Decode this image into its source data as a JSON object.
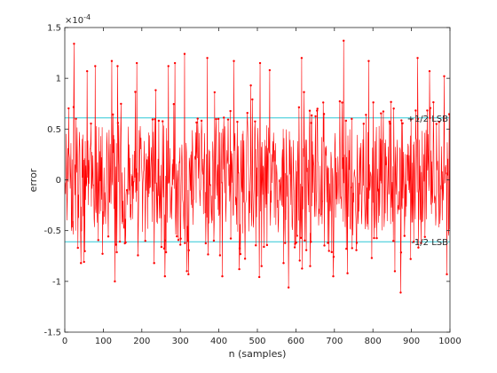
{
  "chart_data": {
    "type": "line",
    "xlabel": "n (samples)",
    "ylabel": "error",
    "exponent_label": "×10",
    "exponent_power": "-4",
    "scale": 0.0001,
    "xlim": [
      0,
      1000
    ],
    "ylim": [
      -1.5,
      1.5
    ],
    "x_ticks": [
      0,
      100,
      200,
      300,
      400,
      500,
      600,
      700,
      800,
      900,
      1000
    ],
    "x_tick_labels": [
      "0",
      "100",
      "200",
      "300",
      "400",
      "500",
      "600",
      "700",
      "800",
      "900",
      "1000"
    ],
    "y_ticks": [
      -1.5,
      -1,
      -0.5,
      0,
      0.5,
      1,
      1.5
    ],
    "y_tick_labels": [
      "-1.5",
      "-1",
      "-0.5",
      "0",
      "0.5",
      "1",
      "1.5"
    ],
    "grid": false,
    "reference_lines": [
      {
        "label": "+1/2 LSB",
        "y": 0.61,
        "color": "#2ec7d6"
      },
      {
        "label": "-1/2 LSB",
        "y": -0.61,
        "color": "#2ec7d6"
      }
    ],
    "series": [
      {
        "color": "#ff0000",
        "marker": "point",
        "x_start": 1,
        "x_step": 1,
        "count": 1000,
        "description_values": "approx. uniformly distributed quantization error",
        "seed": 17,
        "spread": 0.62,
        "peaks": [
          {
            "x": 24,
            "y": 1.34
          },
          {
            "x": 34,
            "y": -0.67
          },
          {
            "x": 42,
            "y": -0.82
          },
          {
            "x": 58,
            "y": 1.07
          },
          {
            "x": 79,
            "y": 1.12
          },
          {
            "x": 122,
            "y": 1.17
          },
          {
            "x": 130,
            "y": -1.0
          },
          {
            "x": 137,
            "y": 1.12
          },
          {
            "x": 187,
            "y": 1.15
          },
          {
            "x": 232,
            "y": -0.82
          },
          {
            "x": 260,
            "y": -0.95
          },
          {
            "x": 269,
            "y": 1.12
          },
          {
            "x": 286,
            "y": 1.15
          },
          {
            "x": 311,
            "y": 1.24
          },
          {
            "x": 321,
            "y": -0.93
          },
          {
            "x": 370,
            "y": 1.2
          },
          {
            "x": 409,
            "y": -0.95
          },
          {
            "x": 439,
            "y": 1.17
          },
          {
            "x": 453,
            "y": -0.88
          },
          {
            "x": 507,
            "y": 1.15
          },
          {
            "x": 511,
            "y": -0.85
          },
          {
            "x": 532,
            "y": 1.08
          },
          {
            "x": 568,
            "y": -0.82
          },
          {
            "x": 581,
            "y": -1.06
          },
          {
            "x": 615,
            "y": 1.2
          },
          {
            "x": 637,
            "y": -0.85
          },
          {
            "x": 697,
            "y": -0.95
          },
          {
            "x": 724,
            "y": 1.37
          },
          {
            "x": 734,
            "y": -0.92
          },
          {
            "x": 789,
            "y": 1.17
          },
          {
            "x": 797,
            "y": -0.77
          },
          {
            "x": 857,
            "y": -0.9
          },
          {
            "x": 872,
            "y": -1.11
          },
          {
            "x": 898,
            "y": -0.78
          },
          {
            "x": 916,
            "y": 1.2
          },
          {
            "x": 947,
            "y": 1.07
          },
          {
            "x": 985,
            "y": 1.02
          },
          {
            "x": 992,
            "y": -0.93
          },
          {
            "x": 996,
            "y": -0.55
          }
        ]
      }
    ]
  }
}
